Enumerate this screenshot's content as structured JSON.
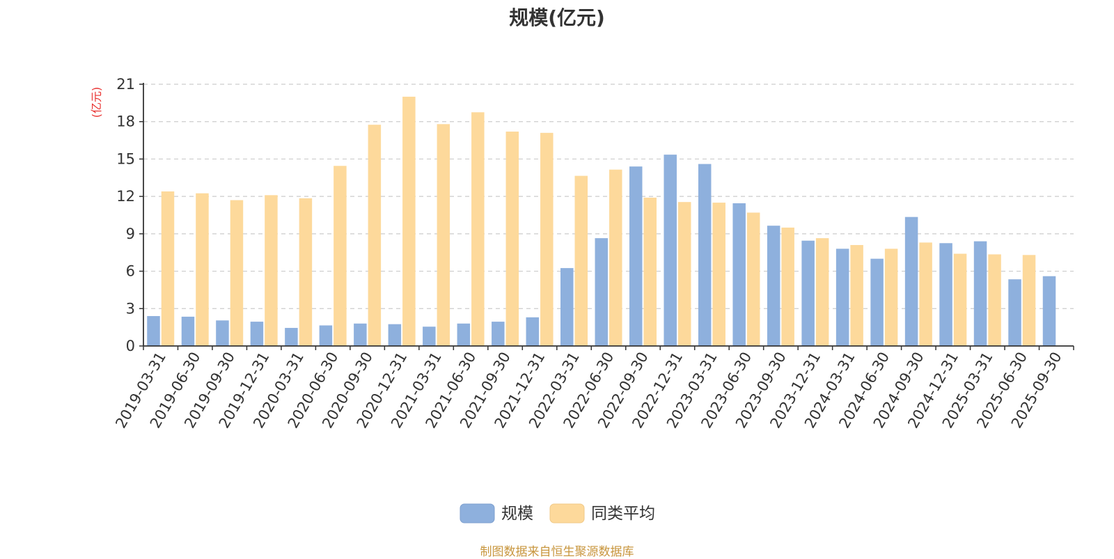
{
  "title": "规模(亿元)",
  "footer": "制图数据来自恒生聚源数据库",
  "chart_data": {
    "type": "bar",
    "unit_label": "(亿元)",
    "categories": [
      "2019-03-31",
      "2019-06-30",
      "2019-09-30",
      "2019-12-31",
      "2020-03-31",
      "2020-06-30",
      "2020-09-30",
      "2020-12-31",
      "2021-03-31",
      "2021-06-30",
      "2021-09-30",
      "2021-12-31",
      "2022-03-31",
      "2022-06-30",
      "2022-09-30",
      "2022-12-31",
      "2023-03-31",
      "2023-06-30",
      "2023-09-30",
      "2023-12-31",
      "2024-03-31",
      "2024-06-30",
      "2024-09-30",
      "2024-12-31",
      "2025-03-31",
      "2025-06-30",
      "2025-09-30"
    ],
    "series": [
      {
        "name": "规模",
        "color": "#8eb0dd",
        "values": [
          2.4,
          2.35,
          2.05,
          1.95,
          1.45,
          1.65,
          1.8,
          1.75,
          1.55,
          1.8,
          1.95,
          2.3,
          6.25,
          8.65,
          14.4,
          15.35,
          14.6,
          11.45,
          9.65,
          8.45,
          7.8,
          7.0,
          10.35,
          8.25,
          8.4,
          5.35,
          5.6
        ]
      },
      {
        "name": "同类平均",
        "color": "#fdd99b",
        "values": [
          12.4,
          12.25,
          11.7,
          12.1,
          11.85,
          14.45,
          17.75,
          20.0,
          17.8,
          18.75,
          17.2,
          17.1,
          13.65,
          14.15,
          11.9,
          11.55,
          11.5,
          10.7,
          9.5,
          8.65,
          8.1,
          7.8,
          8.3,
          7.4,
          7.35,
          7.3,
          null
        ]
      }
    ],
    "ylim": [
      0,
      21
    ],
    "yticks": [
      0,
      3,
      6,
      9,
      12,
      15,
      18,
      21
    ],
    "grid": true,
    "legend_position": "bottom-center",
    "axis_color": "#333333",
    "grid_color": "#cccccc",
    "unit_color": "#e8312f"
  }
}
